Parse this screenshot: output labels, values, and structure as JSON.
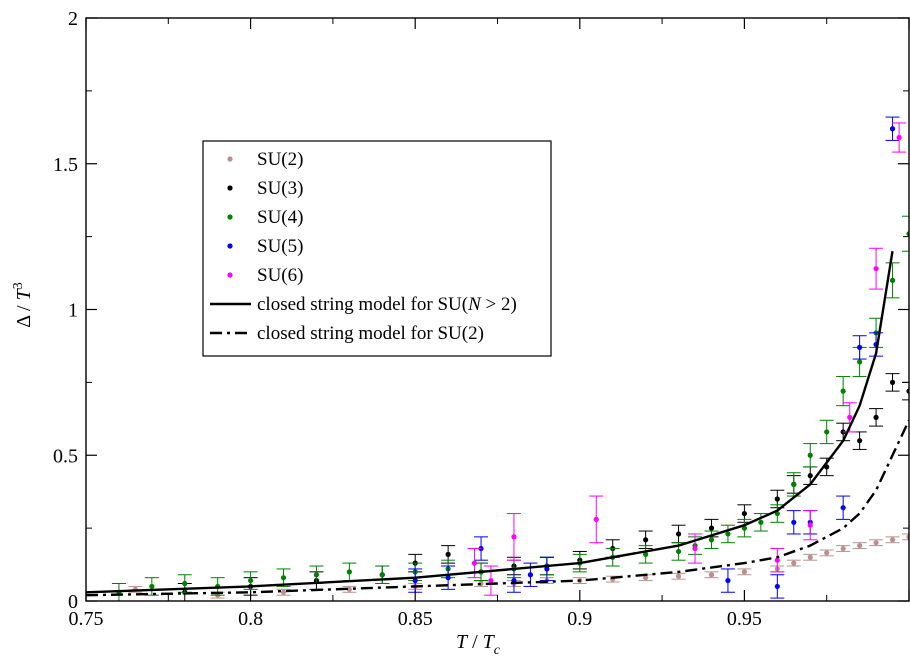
{
  "chart_data": {
    "type": "scatter",
    "title": "",
    "xlabel": "T / T_c",
    "ylabel": "Δ / T^3",
    "xlim": [
      0.75,
      1.0
    ],
    "ylim": [
      0,
      2
    ],
    "xticks": [
      "0.75",
      "0.8",
      "0.85",
      "0.9",
      "0.95"
    ],
    "yticks": [
      "0",
      "0.5",
      "1",
      "1.5",
      "2"
    ],
    "grid": false,
    "legend_position": "upper-left",
    "series": [
      {
        "name": "SU(2)",
        "color": "#bc8f8f",
        "marker": "dot",
        "x": [
          0.765,
          0.79,
          0.81,
          0.83,
          0.85,
          0.87,
          0.88,
          0.89,
          0.9,
          0.91,
          0.92,
          0.93,
          0.94,
          0.95,
          0.96,
          0.965,
          0.97,
          0.975,
          0.98,
          0.985,
          0.99,
          0.995,
          1.0
        ],
        "y": [
          0.04,
          0.02,
          0.03,
          0.04,
          0.05,
          0.06,
          0.06,
          0.07,
          0.07,
          0.075,
          0.08,
          0.085,
          0.09,
          0.1,
          0.11,
          0.13,
          0.15,
          0.165,
          0.18,
          0.19,
          0.2,
          0.21,
          0.22
        ],
        "err": [
          0.01,
          0.01,
          0.01,
          0.01,
          0.01,
          0.01,
          0.01,
          0.01,
          0.01,
          0.01,
          0.01,
          0.01,
          0.01,
          0.01,
          0.01,
          0.01,
          0.01,
          0.01,
          0.01,
          0.01,
          0.01,
          0.01,
          0.01
        ]
      },
      {
        "name": "SU(3)",
        "color": "#000000",
        "marker": "dot",
        "x": [
          0.78,
          0.8,
          0.82,
          0.84,
          0.85,
          0.86,
          0.87,
          0.88,
          0.89,
          0.9,
          0.91,
          0.92,
          0.93,
          0.94,
          0.95,
          0.96,
          0.965,
          0.97,
          0.975,
          0.98,
          0.985,
          0.99,
          0.995,
          1.0
        ],
        "y": [
          0.03,
          0.05,
          0.07,
          0.09,
          0.13,
          0.16,
          0.1,
          0.12,
          0.12,
          0.14,
          0.18,
          0.21,
          0.23,
          0.25,
          0.3,
          0.35,
          0.4,
          0.43,
          0.46,
          0.58,
          0.55,
          0.63,
          0.75,
          0.72
        ],
        "err": [
          0.03,
          0.03,
          0.03,
          0.03,
          0.03,
          0.03,
          0.03,
          0.03,
          0.03,
          0.03,
          0.03,
          0.03,
          0.03,
          0.03,
          0.03,
          0.03,
          0.03,
          0.03,
          0.03,
          0.03,
          0.03,
          0.03,
          0.03,
          0.03
        ]
      },
      {
        "name": "SU(4)",
        "color": "#008000",
        "marker": "dot",
        "x": [
          0.76,
          0.77,
          0.78,
          0.79,
          0.8,
          0.81,
          0.82,
          0.83,
          0.84,
          0.85,
          0.86,
          0.87,
          0.88,
          0.89,
          0.9,
          0.91,
          0.92,
          0.93,
          0.935,
          0.94,
          0.945,
          0.95,
          0.955,
          0.96,
          0.965,
          0.97,
          0.975,
          0.98,
          0.985,
          0.99,
          0.995,
          1.0
        ],
        "y": [
          0.03,
          0.05,
          0.06,
          0.05,
          0.07,
          0.08,
          0.09,
          0.1,
          0.09,
          0.1,
          0.11,
          0.1,
          0.11,
          0.12,
          0.13,
          0.15,
          0.16,
          0.17,
          0.19,
          0.21,
          0.23,
          0.25,
          0.27,
          0.3,
          0.4,
          0.5,
          0.58,
          0.72,
          0.82,
          0.92,
          1.1,
          1.26
        ],
        "err": [
          0.03,
          0.03,
          0.03,
          0.03,
          0.03,
          0.03,
          0.03,
          0.03,
          0.03,
          0.03,
          0.03,
          0.03,
          0.03,
          0.03,
          0.03,
          0.03,
          0.03,
          0.03,
          0.03,
          0.03,
          0.03,
          0.03,
          0.03,
          0.03,
          0.04,
          0.04,
          0.04,
          0.05,
          0.05,
          0.05,
          0.06,
          0.06
        ]
      },
      {
        "name": "SU(5)",
        "color": "#0000ff",
        "marker": "dot",
        "x": [
          0.85,
          0.86,
          0.87,
          0.88,
          0.885,
          0.89,
          0.945,
          0.96,
          0.965,
          0.97,
          0.98,
          0.985,
          0.99,
          0.995
        ],
        "y": [
          0.07,
          0.08,
          0.18,
          0.07,
          0.09,
          0.11,
          0.07,
          0.05,
          0.27,
          0.27,
          0.32,
          0.87,
          0.88,
          1.62
        ],
        "err": [
          0.04,
          0.04,
          0.04,
          0.04,
          0.04,
          0.04,
          0.04,
          0.04,
          0.04,
          0.04,
          0.04,
          0.04,
          0.04,
          0.04
        ]
      },
      {
        "name": "SU(6)",
        "color": "#ff00ff",
        "marker": "dot",
        "x": [
          0.868,
          0.873,
          0.88,
          0.905,
          0.935,
          0.96,
          0.97,
          0.982,
          0.99,
          0.997
        ],
        "y": [
          0.13,
          0.07,
          0.22,
          0.28,
          0.18,
          0.14,
          0.26,
          0.63,
          1.14,
          1.59
        ],
        "err": [
          0.05,
          0.05,
          0.08,
          0.08,
          0.05,
          0.04,
          0.05,
          0.05,
          0.07,
          0.05
        ]
      },
      {
        "name": "closed string model for SU(N > 2)",
        "color": "#000000",
        "style": "solid",
        "x": [
          0.75,
          0.8,
          0.85,
          0.9,
          0.93,
          0.95,
          0.96,
          0.97,
          0.98,
          0.985,
          0.99,
          0.995
        ],
        "y": [
          0.03,
          0.05,
          0.08,
          0.13,
          0.19,
          0.26,
          0.31,
          0.4,
          0.55,
          0.67,
          0.85,
          1.2
        ]
      },
      {
        "name": "closed string model for SU(2)",
        "color": "#000000",
        "style": "dash-dot",
        "x": [
          0.75,
          0.8,
          0.85,
          0.9,
          0.93,
          0.95,
          0.96,
          0.97,
          0.98,
          0.985,
          0.99,
          0.995,
          1.0
        ],
        "y": [
          0.02,
          0.03,
          0.05,
          0.07,
          0.1,
          0.13,
          0.15,
          0.19,
          0.25,
          0.3,
          0.38,
          0.5,
          0.62
        ]
      }
    ]
  },
  "legend": {
    "items": [
      {
        "label": "SU(2)",
        "kind": "dot",
        "color": "#bc8f8f"
      },
      {
        "label": "SU(3)",
        "kind": "dot",
        "color": "#000000"
      },
      {
        "label": "SU(4)",
        "kind": "dot",
        "color": "#008000"
      },
      {
        "label": "SU(5)",
        "kind": "dot",
        "color": "#0000ff"
      },
      {
        "label": "SU(6)",
        "kind": "dot",
        "color": "#ff00ff"
      },
      {
        "label": "closed string model for SU(",
        "label_var": "N",
        "label_end": " > 2)",
        "kind": "solid",
        "color": "#000000"
      },
      {
        "label": "closed string model for SU(2)",
        "kind": "dashdot",
        "color": "#000000"
      }
    ]
  },
  "axis_text": {
    "x_main": "T",
    "x_sep": " / ",
    "x_main2": "T",
    "x_sub": "c",
    "y_main": "Δ / ",
    "y_var": "T",
    "y_sup": "3"
  }
}
